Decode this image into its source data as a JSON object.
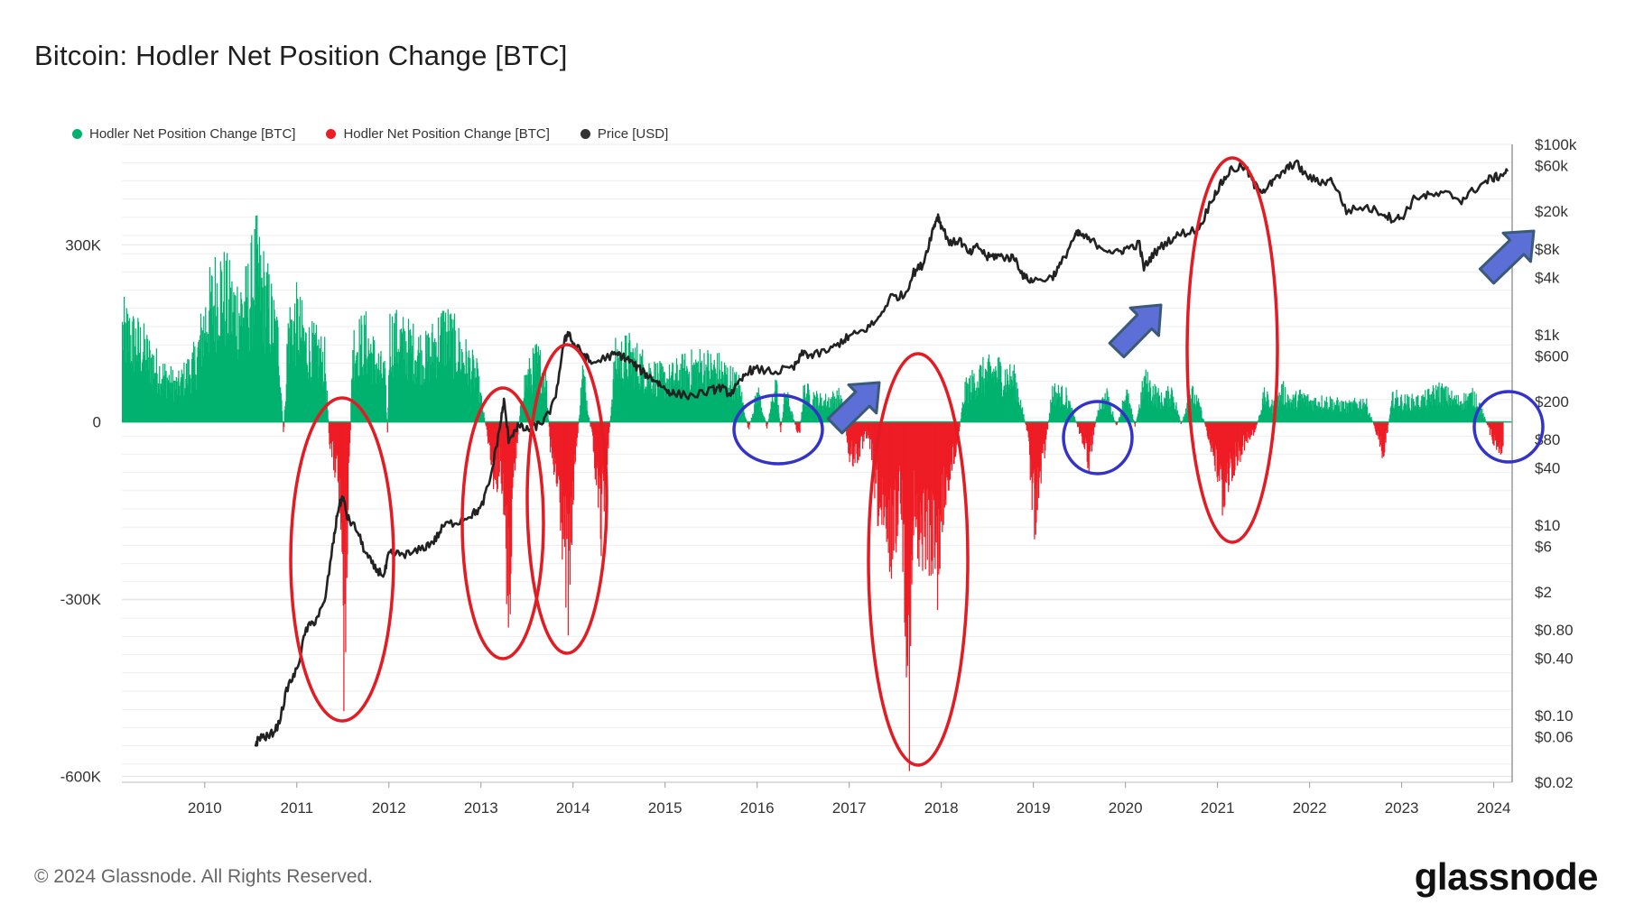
{
  "title": "Bitcoin: Hodler Net Position Change [BTC]",
  "legend": [
    {
      "label": "Hodler Net Position Change [BTC]",
      "color": "#00b26f"
    },
    {
      "label": "Hodler Net Position Change [BTC]",
      "color": "#ee1c25"
    },
    {
      "label": "Price [USD]",
      "color": "#333333"
    }
  ],
  "footer": {
    "copyright": "© 2024 Glassnode. All Rights Reserved.",
    "brand": "glassnode"
  },
  "colors": {
    "positive": "#00b26f",
    "negative": "#ee1c25",
    "price": "#222222",
    "red_annotation": "#e31b23",
    "blue_annotation": "#3333cc",
    "arrow_fill": "#5b6fd6",
    "arrow_stroke": "#3a5a78"
  },
  "chart_data": {
    "type": "bar",
    "title": "Bitcoin: Hodler Net Position Change [BTC]",
    "x_range": [
      2009.1,
      2024.2
    ],
    "x_ticks": [
      "2010",
      "2011",
      "2012",
      "2013",
      "2014",
      "2015",
      "2016",
      "2017",
      "2018",
      "2019",
      "2020",
      "2021",
      "2022",
      "2023",
      "2024"
    ],
    "y_left": {
      "range": [
        -610000,
        470000
      ],
      "ticks": [
        {
          "value": 300000,
          "label": "300K"
        },
        {
          "value": 0,
          "label": "0"
        },
        {
          "value": -300000,
          "label": "-300K"
        },
        {
          "value": -600000,
          "label": "-600K"
        }
      ]
    },
    "y_right": {
      "scale": "log",
      "range": [
        0.02,
        100000
      ],
      "ticks": [
        {
          "value": 100000,
          "label": "$100k"
        },
        {
          "value": 60000,
          "label": "$60k"
        },
        {
          "value": 20000,
          "label": "$20k"
        },
        {
          "value": 8000,
          "label": "$8k"
        },
        {
          "value": 4000,
          "label": "$4k"
        },
        {
          "value": 1000,
          "label": "$1k"
        },
        {
          "value": 600,
          "label": "$600"
        },
        {
          "value": 200,
          "label": "$200"
        },
        {
          "value": 80,
          "label": "$80"
        },
        {
          "value": 40,
          "label": "$40"
        },
        {
          "value": 10,
          "label": "$10"
        },
        {
          "value": 6,
          "label": "$6"
        },
        {
          "value": 2,
          "label": "$2"
        },
        {
          "value": 0.8,
          "label": "$0.80"
        },
        {
          "value": 0.4,
          "label": "$0.40"
        },
        {
          "value": 0.1,
          "label": "$0.10"
        },
        {
          "value": 0.06,
          "label": "$0.06"
        },
        {
          "value": 0.02,
          "label": "$0.02"
        }
      ]
    },
    "net_position_series": [
      [
        2009.1,
        180000
      ],
      [
        2009.3,
        150000
      ],
      [
        2009.5,
        100000
      ],
      [
        2009.7,
        70000
      ],
      [
        2009.9,
        120000
      ],
      [
        2010.0,
        200000
      ],
      [
        2010.15,
        270000
      ],
      [
        2010.3,
        220000
      ],
      [
        2010.45,
        230000
      ],
      [
        2010.55,
        300000
      ],
      [
        2010.7,
        220000
      ],
      [
        2010.8,
        150000
      ],
      [
        2010.85,
        -30000
      ],
      [
        2010.9,
        180000
      ],
      [
        2011.0,
        200000
      ],
      [
        2011.1,
        150000
      ],
      [
        2011.2,
        140000
      ],
      [
        2011.3,
        120000
      ],
      [
        2011.35,
        -40000
      ],
      [
        2011.45,
        -120000
      ],
      [
        2011.5,
        -480000
      ],
      [
        2011.55,
        -200000
      ],
      [
        2011.6,
        150000
      ],
      [
        2011.75,
        160000
      ],
      [
        2011.85,
        120000
      ],
      [
        2011.95,
        90000
      ],
      [
        2011.98,
        -20000
      ],
      [
        2012.0,
        170000
      ],
      [
        2012.2,
        150000
      ],
      [
        2012.4,
        130000
      ],
      [
        2012.6,
        180000
      ],
      [
        2012.8,
        130000
      ],
      [
        2012.95,
        90000
      ],
      [
        2013.0,
        40000
      ],
      [
        2013.1,
        -60000
      ],
      [
        2013.15,
        -120000
      ],
      [
        2013.2,
        -80000
      ],
      [
        2013.3,
        -340000
      ],
      [
        2013.35,
        -100000
      ],
      [
        2013.45,
        70000
      ],
      [
        2013.6,
        120000
      ],
      [
        2013.7,
        90000
      ],
      [
        2013.75,
        -60000
      ],
      [
        2013.85,
        -150000
      ],
      [
        2013.95,
        -340000
      ],
      [
        2014.0,
        -120000
      ],
      [
        2014.1,
        100000
      ],
      [
        2014.2,
        -30000
      ],
      [
        2014.3,
        -200000
      ],
      [
        2014.35,
        -100000
      ],
      [
        2014.45,
        120000
      ],
      [
        2014.6,
        130000
      ],
      [
        2014.8,
        100000
      ],
      [
        2015.0,
        80000
      ],
      [
        2015.2,
        100000
      ],
      [
        2015.4,
        110000
      ],
      [
        2015.6,
        100000
      ],
      [
        2015.8,
        70000
      ],
      [
        2015.9,
        -15000
      ],
      [
        2016.0,
        60000
      ],
      [
        2016.1,
        -10000
      ],
      [
        2016.2,
        80000
      ],
      [
        2016.25,
        -20000
      ],
      [
        2016.3,
        60000
      ],
      [
        2016.45,
        -30000
      ],
      [
        2016.5,
        60000
      ],
      [
        2016.7,
        40000
      ],
      [
        2016.9,
        50000
      ],
      [
        2017.0,
        -70000
      ],
      [
        2017.1,
        -60000
      ],
      [
        2017.2,
        -20000
      ],
      [
        2017.3,
        -150000
      ],
      [
        2017.4,
        -250000
      ],
      [
        2017.5,
        -200000
      ],
      [
        2017.55,
        -120000
      ],
      [
        2017.6,
        -300000
      ],
      [
        2017.65,
        -520000
      ],
      [
        2017.7,
        -150000
      ],
      [
        2017.75,
        -280000
      ],
      [
        2017.8,
        -200000
      ],
      [
        2017.9,
        -240000
      ],
      [
        2017.95,
        -270000
      ],
      [
        2018.05,
        -120000
      ],
      [
        2018.15,
        -60000
      ],
      [
        2018.25,
        60000
      ],
      [
        2018.4,
        90000
      ],
      [
        2018.6,
        100000
      ],
      [
        2018.8,
        80000
      ],
      [
        2018.93,
        -20000
      ],
      [
        2019.0,
        -180000
      ],
      [
        2019.1,
        -80000
      ],
      [
        2019.2,
        60000
      ],
      [
        2019.35,
        50000
      ],
      [
        2019.5,
        -20000
      ],
      [
        2019.6,
        -75000
      ],
      [
        2019.7,
        30000
      ],
      [
        2019.8,
        50000
      ],
      [
        2019.9,
        -10000
      ],
      [
        2020.0,
        60000
      ],
      [
        2020.1,
        -8000
      ],
      [
        2020.2,
        80000
      ],
      [
        2020.4,
        40000
      ],
      [
        2020.5,
        60000
      ],
      [
        2020.6,
        -5000
      ],
      [
        2020.7,
        60000
      ],
      [
        2020.8,
        30000
      ],
      [
        2020.9,
        -30000
      ],
      [
        2021.0,
        -100000
      ],
      [
        2021.05,
        -150000
      ],
      [
        2021.1,
        -110000
      ],
      [
        2021.2,
        -70000
      ],
      [
        2021.3,
        -40000
      ],
      [
        2021.4,
        -20000
      ],
      [
        2021.5,
        50000
      ],
      [
        2021.6,
        30000
      ],
      [
        2021.7,
        60000
      ],
      [
        2021.8,
        40000
      ],
      [
        2021.9,
        50000
      ],
      [
        2022.0,
        40000
      ],
      [
        2022.2,
        40000
      ],
      [
        2022.4,
        30000
      ],
      [
        2022.6,
        40000
      ],
      [
        2022.8,
        -60000
      ],
      [
        2022.9,
        50000
      ],
      [
        2023.0,
        40000
      ],
      [
        2023.2,
        40000
      ],
      [
        2023.4,
        60000
      ],
      [
        2023.6,
        40000
      ],
      [
        2023.8,
        50000
      ],
      [
        2024.0,
        -40000
      ],
      [
        2024.1,
        -50000
      ]
    ],
    "price_series": [
      [
        2010.55,
        0.05
      ],
      [
        2010.6,
        0.06
      ],
      [
        2010.7,
        0.06
      ],
      [
        2010.8,
        0.08
      ],
      [
        2010.9,
        0.2
      ],
      [
        2011.0,
        0.3
      ],
      [
        2011.1,
        0.8
      ],
      [
        2011.2,
        1.0
      ],
      [
        2011.3,
        1.5
      ],
      [
        2011.4,
        7
      ],
      [
        2011.45,
        15
      ],
      [
        2011.5,
        20
      ],
      [
        2011.55,
        12
      ],
      [
        2011.65,
        9
      ],
      [
        2011.75,
        5
      ],
      [
        2011.85,
        3.5
      ],
      [
        2011.95,
        3
      ],
      [
        2012.0,
        5
      ],
      [
        2012.1,
        5
      ],
      [
        2012.25,
        5
      ],
      [
        2012.4,
        6
      ],
      [
        2012.5,
        7
      ],
      [
        2012.6,
        10
      ],
      [
        2012.75,
        11
      ],
      [
        2012.9,
        13
      ],
      [
        2013.0,
        15
      ],
      [
        2013.1,
        30
      ],
      [
        2013.2,
        100
      ],
      [
        2013.25,
        200
      ],
      [
        2013.3,
        80
      ],
      [
        2013.4,
        110
      ],
      [
        2013.5,
        100
      ],
      [
        2013.6,
        110
      ],
      [
        2013.7,
        130
      ],
      [
        2013.8,
        200
      ],
      [
        2013.9,
        800
      ],
      [
        2013.95,
        1100
      ],
      [
        2014.0,
        800
      ],
      [
        2014.1,
        650
      ],
      [
        2014.2,
        500
      ],
      [
        2014.4,
        600
      ],
      [
        2014.5,
        620
      ],
      [
        2014.6,
        550
      ],
      [
        2014.7,
        450
      ],
      [
        2014.8,
        380
      ],
      [
        2014.9,
        330
      ],
      [
        2015.0,
        270
      ],
      [
        2015.1,
        240
      ],
      [
        2015.3,
        230
      ],
      [
        2015.5,
        260
      ],
      [
        2015.6,
        280
      ],
      [
        2015.7,
        240
      ],
      [
        2015.8,
        300
      ],
      [
        2015.9,
        420
      ],
      [
        2016.0,
        430
      ],
      [
        2016.2,
        410
      ],
      [
        2016.4,
        450
      ],
      [
        2016.5,
        650
      ],
      [
        2016.6,
        600
      ],
      [
        2016.8,
        700
      ],
      [
        2016.95,
        900
      ],
      [
        2017.0,
        950
      ],
      [
        2017.15,
        1100
      ],
      [
        2017.3,
        1400
      ],
      [
        2017.45,
        2500
      ],
      [
        2017.6,
        2600
      ],
      [
        2017.7,
        4500
      ],
      [
        2017.8,
        5500
      ],
      [
        2017.9,
        12000
      ],
      [
        2017.96,
        18000
      ],
      [
        2018.0,
        14000
      ],
      [
        2018.1,
        9000
      ],
      [
        2018.2,
        10000
      ],
      [
        2018.3,
        7000
      ],
      [
        2018.4,
        8500
      ],
      [
        2018.5,
        6500
      ],
      [
        2018.6,
        6800
      ],
      [
        2018.7,
        6500
      ],
      [
        2018.8,
        6400
      ],
      [
        2018.9,
        4000
      ],
      [
        2019.0,
        3700
      ],
      [
        2019.2,
        4000
      ],
      [
        2019.3,
        5500
      ],
      [
        2019.45,
        11000
      ],
      [
        2019.5,
        11500
      ],
      [
        2019.6,
        10000
      ],
      [
        2019.75,
        8300
      ],
      [
        2019.9,
        7200
      ],
      [
        2020.0,
        8000
      ],
      [
        2020.15,
        9000
      ],
      [
        2020.2,
        5000
      ],
      [
        2020.3,
        7000
      ],
      [
        2020.45,
        9500
      ],
      [
        2020.6,
        11500
      ],
      [
        2020.8,
        13000
      ],
      [
        2020.95,
        28000
      ],
      [
        2021.05,
        40000
      ],
      [
        2021.15,
        55000
      ],
      [
        2021.3,
        58000
      ],
      [
        2021.4,
        37000
      ],
      [
        2021.5,
        33000
      ],
      [
        2021.6,
        40000
      ],
      [
        2021.75,
        55000
      ],
      [
        2021.85,
        65000
      ],
      [
        2021.95,
        48000
      ],
      [
        2022.1,
        40000
      ],
      [
        2022.25,
        42000
      ],
      [
        2022.4,
        20000
      ],
      [
        2022.6,
        22000
      ],
      [
        2022.8,
        19000
      ],
      [
        2022.9,
        16500
      ],
      [
        2023.0,
        17000
      ],
      [
        2023.15,
        28000
      ],
      [
        2023.3,
        29000
      ],
      [
        2023.5,
        30000
      ],
      [
        2023.65,
        26000
      ],
      [
        2023.8,
        34000
      ],
      [
        2023.95,
        43000
      ],
      [
        2024.05,
        46000
      ],
      [
        2024.15,
        52000
      ]
    ],
    "annotations": {
      "red_ellipses": [
        "2011 peak",
        "2013 spring peak",
        "2013 winter peak",
        "2017 peak",
        "2021 peak"
      ],
      "blue_circles": [
        "2016",
        "2019",
        "2024"
      ],
      "arrows": [
        "2017",
        "2020",
        "2024"
      ]
    }
  }
}
